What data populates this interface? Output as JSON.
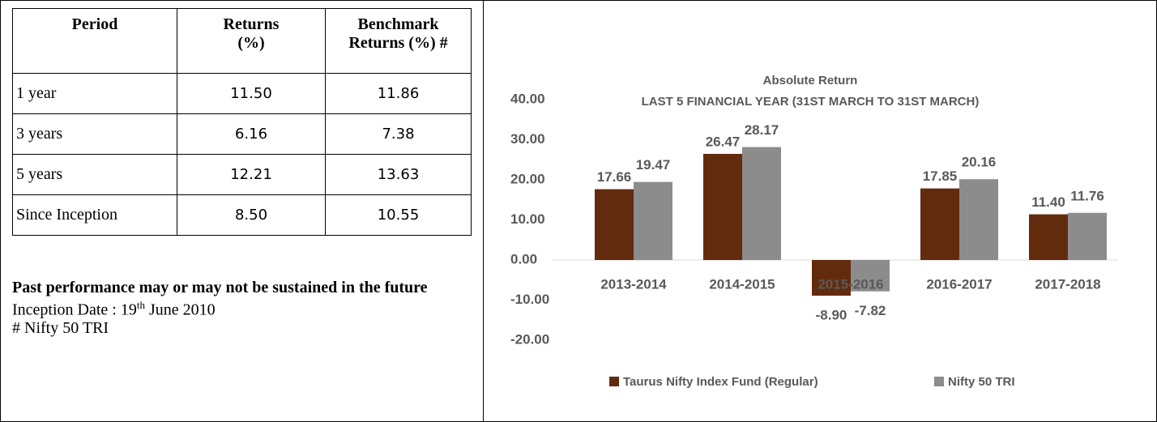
{
  "table": {
    "header": [
      "Period",
      "Returns (%)",
      "Benchmark Returns (%) #"
    ],
    "rows": [
      [
        "1 year",
        "11.50",
        "11.86"
      ],
      [
        "3 years",
        "6.16",
        "7.38"
      ],
      [
        "5 years",
        "12.21",
        "13.63"
      ],
      [
        "Since Inception",
        "8.50",
        "10.55"
      ]
    ]
  },
  "notes": {
    "disclaimer": "Past performance may or may not be sustained in the future",
    "inception": {
      "prefix": "Inception Date : 19",
      "sup": "th",
      "suffix": " June 2010"
    },
    "benchmark": "# Nifty 50 TRI"
  },
  "chart_data": {
    "type": "bar",
    "title": "Absolute Return",
    "subtitle": "LAST 5 FINANCIAL YEAR (31ST MARCH TO 31ST MARCH)",
    "categories": [
      "2013-2014",
      "2014-2015",
      "2015-2016",
      "2016-2017",
      "2017-2018"
    ],
    "series": [
      {
        "name": "Taurus Nifty Index Fund (Regular)",
        "color": "#632b0e",
        "values": [
          17.66,
          26.47,
          -8.9,
          17.85,
          11.4
        ],
        "value_labels": [
          "17.66",
          "26.47",
          "-8.90",
          "17.85",
          "11.40"
        ]
      },
      {
        "name": "Nifty 50 TRI",
        "color": "#8c8c8c",
        "values": [
          19.47,
          28.17,
          -7.82,
          20.16,
          11.76
        ],
        "value_labels": [
          "19.47",
          "28.17",
          "-7.82",
          "20.16",
          "11.76"
        ]
      }
    ],
    "ylim": [
      -20,
      40
    ],
    "yticks": [
      {
        "value": 40,
        "label": "40.00"
      },
      {
        "value": 30,
        "label": "30.00"
      },
      {
        "value": 20,
        "label": "20.00"
      },
      {
        "value": 10,
        "label": "10.00"
      },
      {
        "value": 0,
        "label": "0.00"
      },
      {
        "value": -10,
        "label": "-10.00"
      },
      {
        "value": -20,
        "label": "-20.00"
      }
    ],
    "legend": "bottom"
  }
}
